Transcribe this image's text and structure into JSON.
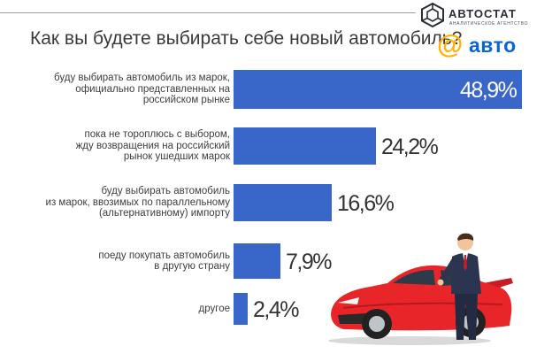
{
  "header": {
    "brand_name": "АВТОСТАТ",
    "brand_subtitle": "АНАЛИТИЧЕСКОЕ АГЕНТСТВО",
    "partner_at": "@",
    "partner_name": "авто"
  },
  "colors": {
    "bar": "#3967c9",
    "title_text": "#3a3a3a",
    "partner_at": "#ffb100",
    "partner_name": "#0a63d8",
    "car": "#e8262a"
  },
  "illustration": {
    "description_icon": "red-car-with-businessman-icon"
  },
  "chart_data": {
    "type": "bar",
    "orientation": "horizontal",
    "title": "Как вы будете выбирать себе новый автомобиль?",
    "categories": [
      [
        "буду выбирать автомобиль из марок,",
        "официально представленных на",
        "российском рынке"
      ],
      [
        "пока не тороплюсь с выбором,",
        "жду возвращения на российский",
        "рынок ушедших марок"
      ],
      [
        "буду выбирать автомобиль",
        "из марок, ввозимых по параллельному",
        "(альтернативному) импорту"
      ],
      [
        "поеду покупать автомобиль",
        "в другую страну"
      ],
      [
        "другое"
      ]
    ],
    "values": [
      48.9,
      24.2,
      16.6,
      7.9,
      2.4
    ],
    "value_labels": [
      "48,9%",
      "24,2%",
      "16,6%",
      "7,9%",
      "2,4%"
    ],
    "unit": "%",
    "xlim": [
      0,
      48.9
    ],
    "legend": "none",
    "grid": false
  }
}
